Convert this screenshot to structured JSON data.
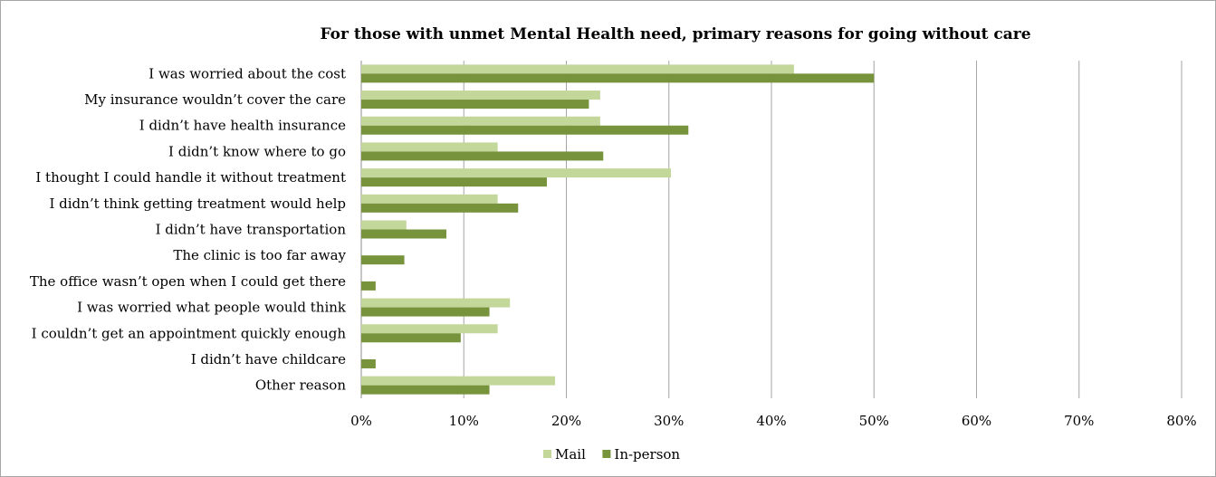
{
  "chart_data": {
    "type": "bar",
    "orientation": "horizontal",
    "title": "For those with unmet Mental Health need, primary reasons for going without care",
    "xlabel": "",
    "ylabel": "",
    "xlim": [
      0,
      0.8
    ],
    "ticks": [
      0,
      0.1,
      0.2,
      0.3,
      0.4,
      0.5,
      0.6,
      0.7,
      0.8
    ],
    "tick_labels": [
      "0%",
      "10%",
      "20%",
      "30%",
      "40%",
      "50%",
      "60%",
      "70%",
      "80%"
    ],
    "grid": "vertical",
    "legend_position": "bottom",
    "categories": [
      "I was worried about the cost",
      "My insurance wouldn’t cover the care",
      "I didn’t have health insurance",
      "I didn’t know where to go",
      "I thought I could handle it without treatment",
      "I didn’t think getting treatment would help",
      "I didn’t have transportation",
      "The clinic is too far away",
      "The office wasn’t open when I could get there",
      "I was worried what people would think",
      "I couldn’t get an appointment quickly enough",
      "I didn’t have childcare",
      "Other reason"
    ],
    "series": [
      {
        "name": "Mail",
        "color": "#c4d79b",
        "values": [
          0.422,
          0.233,
          0.233,
          0.133,
          0.302,
          0.133,
          0.044,
          0,
          0,
          0.145,
          0.133,
          0,
          0.189
        ]
      },
      {
        "name": "In-person",
        "color": "#77933c",
        "values": [
          0.5,
          0.222,
          0.319,
          0.236,
          0.181,
          0.153,
          0.083,
          0.042,
          0.014,
          0.125,
          0.097,
          0.014,
          0.125
        ]
      }
    ]
  }
}
